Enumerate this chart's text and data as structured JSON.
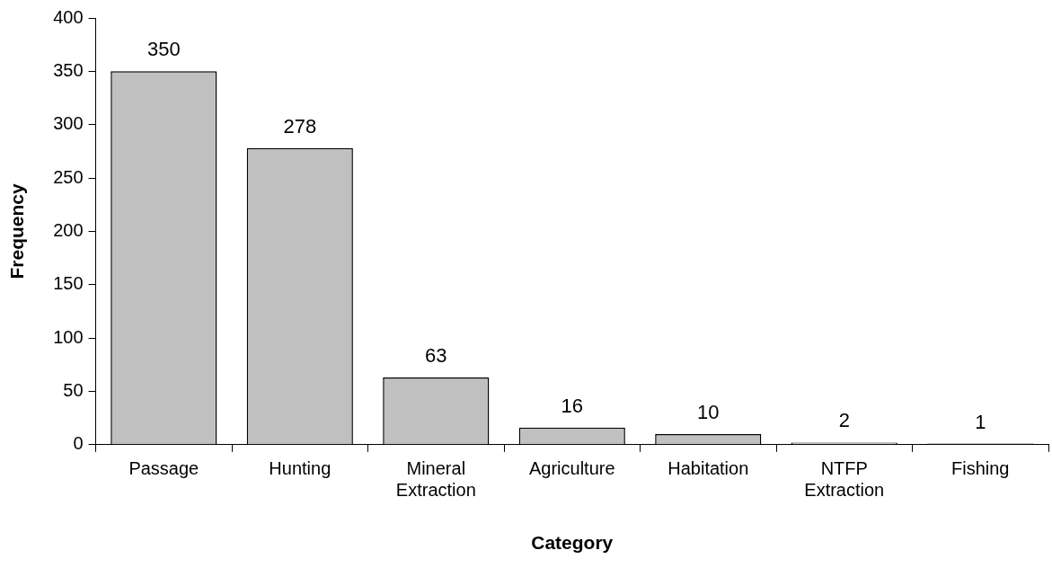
{
  "chart_data": {
    "type": "bar",
    "xlabel": "Category",
    "ylabel": "Frequency",
    "categories": [
      "Passage",
      "Hunting",
      "Mineral Extraction",
      "Agriculture",
      "Habitation",
      "NTFP Extraction",
      "Fishing"
    ],
    "values": [
      350,
      278,
      63,
      16,
      10,
      2,
      1
    ],
    "color": "#c0c0c0",
    "ylim": [
      0,
      400
    ],
    "yticks": [
      0,
      50,
      100,
      150,
      200,
      250,
      300,
      350,
      400
    ],
    "grid": false,
    "legend": false,
    "data_labels": true
  }
}
